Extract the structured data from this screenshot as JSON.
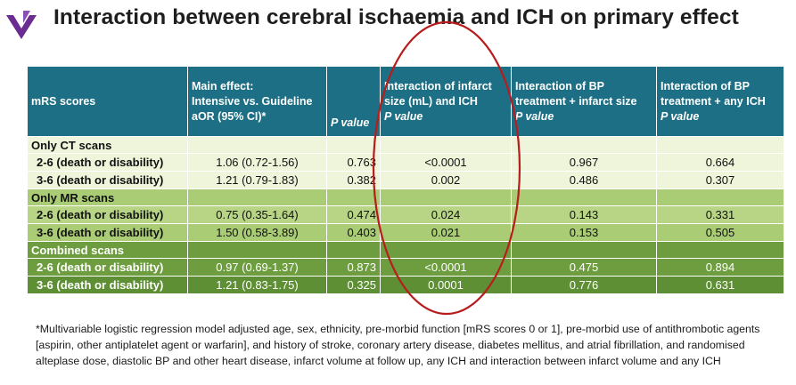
{
  "title": "Interaction between cerebral ischaemia and ICH on primary effect",
  "colors": {
    "header": "#1c6f84",
    "ct": "#eef5da",
    "mr": "#a9cc74",
    "combined": "#6e9d3f",
    "highlight": "#b81c1c",
    "logo": "#6a2c91"
  },
  "icons": {
    "logo": "logo-icon"
  },
  "table": {
    "headers": {
      "mrs": "mRS scores",
      "main_lines": [
        "Main effect:",
        "Intensive vs. Guideline",
        "aOR (95% CI)*"
      ],
      "p_value": "P value",
      "infarct_lines": [
        "Interaction of infarct",
        "size (mL) and ICH",
        "P value"
      ],
      "bp_infarct_lines": [
        "Interaction of BP",
        "treatment + infarct size",
        "P value"
      ],
      "bp_ich_lines": [
        "Interaction of BP",
        "treatment + any ICH",
        "P value"
      ]
    },
    "sections": [
      {
        "label": "Only CT scans",
        "rows": [
          {
            "label": "2-6 (death or disability)",
            "aor": "1.06 (0.72-1.56)",
            "p": "0.763",
            "infarct_ich": "<0.0001",
            "bp_infarct": "0.967",
            "bp_ich": "0.664"
          },
          {
            "label": "3-6 (death or disability)",
            "aor": "1.21 (0.79-1.83)",
            "p": "0.382",
            "infarct_ich": "0.002",
            "bp_infarct": "0.486",
            "bp_ich": "0.307"
          }
        ]
      },
      {
        "label": "Only MR scans",
        "rows": [
          {
            "label": "2-6 (death or disability)",
            "aor": "0.75 (0.35-1.64)",
            "p": "0.474",
            "infarct_ich": "0.024",
            "bp_infarct": "0.143",
            "bp_ich": "0.331"
          },
          {
            "label": "3-6 (death or disability)",
            "aor": "1.50 (0.58-3.89)",
            "p": "0.403",
            "infarct_ich": "0.021",
            "bp_infarct": "0.153",
            "bp_ich": "0.505"
          }
        ]
      },
      {
        "label": "Combined scans",
        "rows": [
          {
            "label": "2-6 (death or disability)",
            "aor": "0.97 (0.69-1.37)",
            "p": "0.873",
            "infarct_ich": "<0.0001",
            "bp_infarct": "0.475",
            "bp_ich": "0.894"
          },
          {
            "label": "3-6 (death or disability)",
            "aor": "1.21 (0.83-1.75)",
            "p": "0.325",
            "infarct_ich": "0.0001",
            "bp_infarct": "0.776",
            "bp_ich": "0.631"
          }
        ]
      }
    ]
  },
  "footnote": "*Multivariable logistic regression model adjusted age, sex, ethnicity, pre-morbid function [mRS scores 0 or 1], pre-morbid use of antithrombotic agents [aspirin, other antiplatelet agent or warfarin], and history of stroke, coronary artery disease, diabetes mellitus, and atrial fibrillation, and randomised alteplase dose, diastolic BP and other heart disease, infarct volume at follow up, any ICH and interaction between infarct volume and any ICH"
}
